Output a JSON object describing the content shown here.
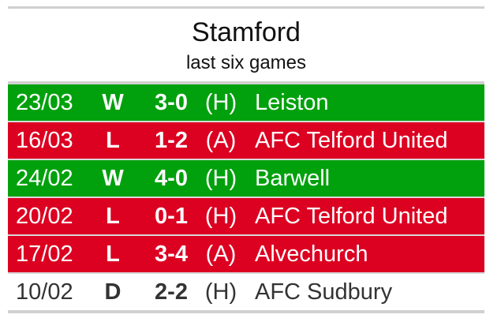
{
  "header": {
    "title": "Stamford",
    "subtitle": "last six games"
  },
  "colors": {
    "win": "#00a10c",
    "loss": "#dc0021",
    "draw": "#ffffff"
  },
  "games": [
    {
      "date": "23/03",
      "result": "W",
      "score": "3-0",
      "venue": "(H)",
      "opponent": "Leiston"
    },
    {
      "date": "16/03",
      "result": "L",
      "score": "1-2",
      "venue": "(A)",
      "opponent": "AFC Telford United"
    },
    {
      "date": "24/02",
      "result": "W",
      "score": "4-0",
      "venue": "(H)",
      "opponent": "Barwell"
    },
    {
      "date": "20/02",
      "result": "L",
      "score": "0-1",
      "venue": "(H)",
      "opponent": "AFC Telford United"
    },
    {
      "date": "17/02",
      "result": "L",
      "score": "3-4",
      "venue": "(A)",
      "opponent": "Alvechurch"
    },
    {
      "date": "10/02",
      "result": "D",
      "score": "2-2",
      "venue": "(H)",
      "opponent": "AFC Sudbury"
    }
  ]
}
